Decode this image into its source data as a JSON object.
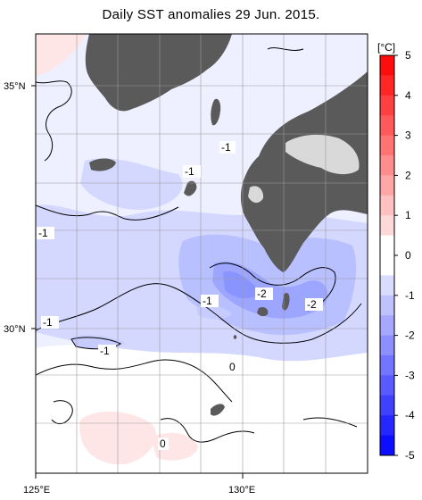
{
  "title": "Daily SST anomalies 29 Jun. 2015.",
  "axes": {
    "lat_labels": [
      "35°N",
      "30°N"
    ],
    "lon_labels": [
      "125°E",
      "130°E"
    ]
  },
  "colorbar": {
    "unit": "[°C]",
    "tick_labels": [
      "5",
      "4",
      "3",
      "2",
      "1",
      "0",
      "-1",
      "-2",
      "-3",
      "-4",
      "-5"
    ],
    "min": -5,
    "max": 5,
    "step": 0.5,
    "colors": {
      "neg_strong": "#0000ff",
      "neg_light": "#e6e8ff",
      "pos_light": "#ffe6e6",
      "pos_strong": "#ff0000",
      "zero": "#ffffff"
    }
  },
  "contour_labels": [
    "-1",
    "-1",
    "-1",
    "-1",
    "-1",
    "-2",
    "-2",
    "-1",
    "0",
    "0"
  ],
  "colors": {
    "land": "#5a5a5a",
    "lake_land": "#d9d9d9",
    "contour": "#000000",
    "grid": "#9a9a9a"
  }
}
